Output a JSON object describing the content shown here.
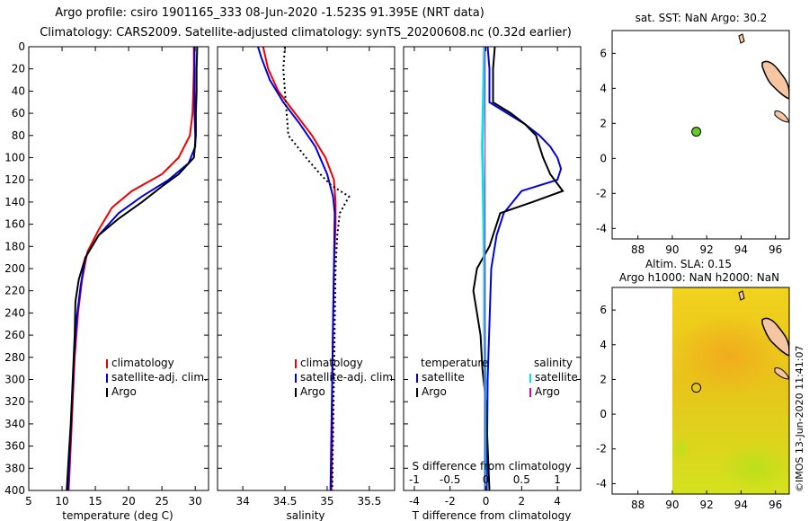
{
  "header": {
    "line1": "Argo profile: csiro 1901165_333 08-Jun-2020 -1.523S 91.395E (NRT data)",
    "line2": "Climatology: CARS2009. Satellite-adjusted climatology: synTS_20200608.nc (0.32d earlier)"
  },
  "colors": {
    "climatology": "#ee0000",
    "satellite": "#0000dd",
    "argo": "#000000",
    "sal_satellite": "#00e5e5",
    "sal_argo": "#cc00cc",
    "land": "#f6c5a2",
    "argo_marker": "#66cc22"
  },
  "depth_axis": {
    "ticks": [
      "0",
      "20",
      "40",
      "60",
      "80",
      "100",
      "120",
      "140",
      "160",
      "180",
      "200",
      "220",
      "240",
      "260",
      "280",
      "300",
      "320",
      "340",
      "360",
      "380",
      "400"
    ],
    "ylim": [
      0,
      400
    ]
  },
  "chart_data": [
    {
      "id": "temperature",
      "type": "line",
      "xlabel": "temperature (deg C)",
      "xlim": [
        5,
        32
      ],
      "xticks": [
        "5",
        "10",
        "15",
        "20",
        "25",
        "30"
      ],
      "legend": [
        "climatology",
        "satellite-adj. clim.",
        "Argo"
      ],
      "series": [
        {
          "name": "climatology",
          "points": [
            [
              29.8,
              0
            ],
            [
              29.8,
              20
            ],
            [
              29.7,
              40
            ],
            [
              29.6,
              60
            ],
            [
              29.2,
              80
            ],
            [
              27.5,
              100
            ],
            [
              25.0,
              115
            ],
            [
              20.5,
              130
            ],
            [
              17.5,
              145
            ],
            [
              15.5,
              165
            ],
            [
              13.8,
              185
            ],
            [
              13.0,
              210
            ],
            [
              12.4,
              240
            ],
            [
              11.9,
              280
            ],
            [
              11.6,
              320
            ],
            [
              11.3,
              360
            ],
            [
              11.0,
              400
            ]
          ]
        },
        {
          "name": "satellite-adj. clim.",
          "points": [
            [
              29.9,
              0
            ],
            [
              29.9,
              20
            ],
            [
              29.9,
              40
            ],
            [
              29.9,
              60
            ],
            [
              30.0,
              80
            ],
            [
              30.0,
              90
            ],
            [
              29.0,
              105
            ],
            [
              26.0,
              120
            ],
            [
              22.0,
              135
            ],
            [
              18.5,
              150
            ],
            [
              15.5,
              170
            ],
            [
              13.5,
              190
            ],
            [
              12.8,
              215
            ],
            [
              12.2,
              245
            ],
            [
              11.8,
              280
            ],
            [
              11.5,
              320
            ],
            [
              11.2,
              360
            ],
            [
              10.9,
              400
            ]
          ]
        },
        {
          "name": "Argo",
          "points": [
            [
              30.3,
              0
            ],
            [
              30.2,
              20
            ],
            [
              30.2,
              40
            ],
            [
              30.1,
              60
            ],
            [
              30.1,
              80
            ],
            [
              29.8,
              100
            ],
            [
              27.5,
              115
            ],
            [
              25.2,
              125
            ],
            [
              22.0,
              140
            ],
            [
              18.5,
              155
            ],
            [
              15.5,
              170
            ],
            [
              13.5,
              190
            ],
            [
              12.5,
              210
            ],
            [
              12.0,
              230
            ],
            [
              11.9,
              260
            ],
            [
              11.6,
              300
            ],
            [
              11.3,
              340
            ],
            [
              11.0,
              370
            ],
            [
              10.7,
              400
            ]
          ]
        }
      ]
    },
    {
      "id": "salinity",
      "type": "line",
      "xlabel": "salinity",
      "xlim": [
        33.7,
        35.8
      ],
      "xticks": [
        "34",
        "34.5",
        "35",
        "35.5"
      ],
      "legend": [
        "climatology",
        "satellite-adj. clim.",
        "Argo"
      ],
      "series": [
        {
          "name": "climatology",
          "points": [
            [
              34.24,
              0
            ],
            [
              34.3,
              20
            ],
            [
              34.42,
              40
            ],
            [
              34.62,
              60
            ],
            [
              34.82,
              80
            ],
            [
              34.98,
              100
            ],
            [
              35.08,
              120
            ],
            [
              35.1,
              140
            ],
            [
              35.1,
              160
            ],
            [
              35.08,
              200
            ],
            [
              35.07,
              250
            ],
            [
              35.06,
              300
            ],
            [
              35.06,
              350
            ],
            [
              35.05,
              400
            ]
          ]
        },
        {
          "name": "satellite-adj. clim.",
          "points": [
            [
              34.18,
              0
            ],
            [
              34.22,
              10
            ],
            [
              34.32,
              30
            ],
            [
              34.48,
              50
            ],
            [
              34.68,
              70
            ],
            [
              34.86,
              90
            ],
            [
              35.0,
              115
            ],
            [
              35.07,
              135
            ],
            [
              35.09,
              150
            ],
            [
              35.08,
              200
            ],
            [
              35.07,
              250
            ],
            [
              35.06,
              300
            ],
            [
              35.05,
              350
            ],
            [
              35.04,
              400
            ]
          ]
        },
        {
          "name": "Argo",
          "points": [
            [
              34.5,
              0
            ],
            [
              34.48,
              20
            ],
            [
              34.5,
              40
            ],
            [
              34.52,
              60
            ],
            [
              34.54,
              80
            ],
            [
              34.75,
              100
            ],
            [
              34.92,
              115
            ],
            [
              35.05,
              125
            ],
            [
              35.26,
              135
            ],
            [
              35.15,
              150
            ],
            [
              35.12,
              170
            ],
            [
              35.1,
              200
            ],
            [
              35.09,
              250
            ],
            [
              35.08,
              300
            ],
            [
              35.07,
              350
            ],
            [
              35.06,
              400
            ]
          ]
        }
      ]
    },
    {
      "id": "differences",
      "type": "line",
      "xlabel": "T difference from climatology",
      "x2label": "S difference from climatology",
      "xlim": [
        -4.6,
        5.3
      ],
      "xticks": [
        "-4",
        "-2",
        "0",
        "2",
        "4"
      ],
      "x2lim": [
        -1.15,
        1.325
      ],
      "x2ticks": [
        "-1",
        "-0.5",
        "0",
        "0.5",
        "1"
      ],
      "legend_headers": [
        "temperature",
        "salinity"
      ],
      "legend": [
        "satellite",
        "Argo",
        "satellite",
        "Argo"
      ],
      "series": [
        {
          "name": "T satellite",
          "points": [
            [
              0.1,
              0
            ],
            [
              0.2,
              20
            ],
            [
              0.2,
              40
            ],
            [
              0.2,
              50
            ],
            [
              1.2,
              60
            ],
            [
              2.2,
              70
            ],
            [
              3.0,
              80
            ],
            [
              3.6,
              90
            ],
            [
              4.0,
              100
            ],
            [
              4.2,
              110
            ],
            [
              4.0,
              120
            ],
            [
              2.0,
              130
            ],
            [
              1.0,
              150
            ],
            [
              0.6,
              170
            ],
            [
              0.3,
              200
            ],
            [
              0.2,
              250
            ],
            [
              0.1,
              300
            ],
            [
              0.05,
              400
            ]
          ]
        },
        {
          "name": "T Argo",
          "points": [
            [
              0.5,
              0
            ],
            [
              0.4,
              20
            ],
            [
              0.4,
              40
            ],
            [
              0.4,
              50
            ],
            [
              1.4,
              60
            ],
            [
              2.2,
              70
            ],
            [
              2.8,
              80
            ],
            [
              3.0,
              90
            ],
            [
              3.2,
              100
            ],
            [
              3.6,
              115
            ],
            [
              4.3,
              130
            ],
            [
              2.6,
              140
            ],
            [
              0.8,
              150
            ],
            [
              0.2,
              180
            ],
            [
              -0.5,
              200
            ],
            [
              -0.7,
              220
            ],
            [
              -0.5,
              240
            ],
            [
              -0.3,
              260
            ],
            [
              -0.2,
              290
            ],
            [
              0.0,
              320
            ],
            [
              0.1,
              360
            ],
            [
              0.2,
              400
            ]
          ]
        },
        {
          "name": "S satellite",
          "points": [
            [
              -0.02,
              0
            ],
            [
              -0.03,
              30
            ],
            [
              -0.04,
              60
            ],
            [
              -0.05,
              90
            ],
            [
              -0.04,
              120
            ],
            [
              -0.03,
              160
            ],
            [
              -0.02,
              200
            ],
            [
              -0.02,
              250
            ],
            [
              -0.01,
              300
            ],
            [
              -0.01,
              350
            ],
            [
              -0.01,
              400
            ]
          ]
        },
        {
          "name": "S Argo",
          "points": [
            [
              -0.01,
              0
            ],
            [
              -0.01,
              100
            ],
            [
              -0.01,
              200
            ],
            [
              -0.01,
              300
            ],
            [
              -0.01,
              400
            ]
          ]
        }
      ]
    },
    {
      "id": "sst-map",
      "type": "scatter",
      "title": "sat. SST: NaN Argo: 30.2",
      "xlim": [
        86.5,
        96.8
      ],
      "ylim": [
        -4.6,
        7.3
      ],
      "xticks": [
        "88",
        "90",
        "92",
        "94",
        "96"
      ],
      "yticks": [
        "-4",
        "-2",
        "0",
        "2",
        "4",
        "6"
      ],
      "argo_position": [
        91.395,
        1.523
      ]
    },
    {
      "id": "sla-map",
      "type": "heatmap",
      "title1": "Altim. SLA: 0.15",
      "title2": "Argo h1000: NaN h2000: NaN",
      "xlim": [
        86.5,
        96.8
      ],
      "ylim": [
        -4.6,
        7.3
      ],
      "xticks": [
        "88",
        "90",
        "92",
        "94",
        "96"
      ],
      "yticks": [
        "-4",
        "-2",
        "0",
        "2",
        "4",
        "6"
      ],
      "data_xlim": [
        90,
        96.8
      ],
      "argo_position": [
        91.395,
        1.523
      ]
    }
  ],
  "footer": {
    "credit": "©IMOS 13-Jun-2020 11:41:07"
  }
}
